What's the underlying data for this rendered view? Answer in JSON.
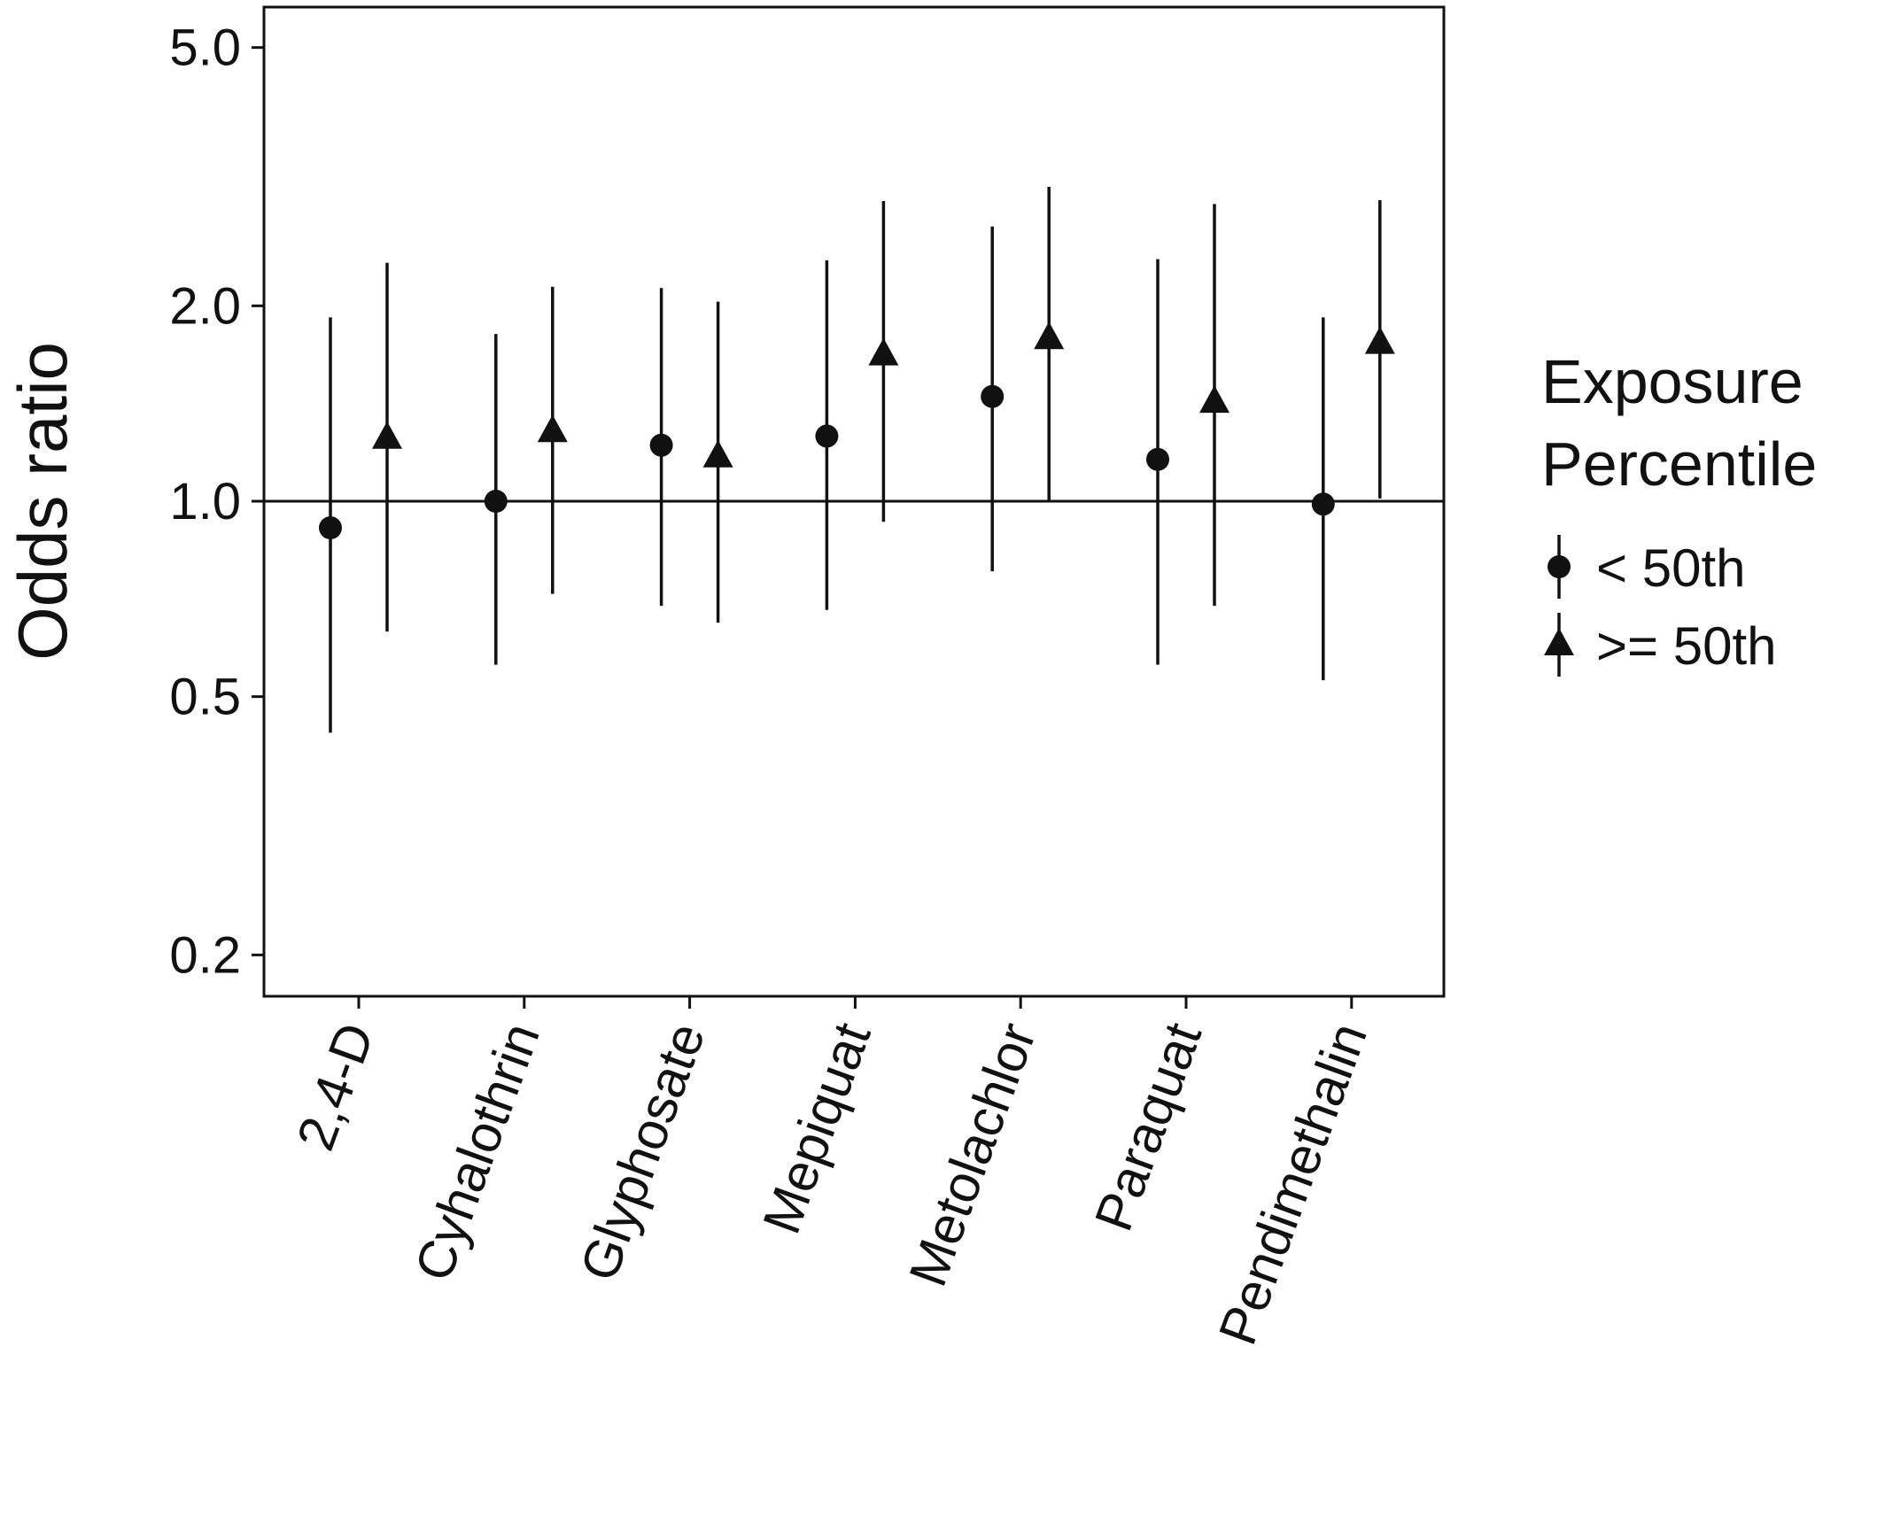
{
  "chart_data": {
    "type": "scatter",
    "subtype": "point-range (odds ratio with confidence interval)",
    "title": "",
    "xlabel": "",
    "ylabel": "Odds ratio",
    "y_scale": "log",
    "ylim": [
      0.17,
      6.0
    ],
    "y_ticks": [
      0.2,
      0.5,
      1.0,
      2.0,
      5.0
    ],
    "y_tick_labels": [
      "0.2",
      "0.5",
      "1.0",
      "2.0",
      "5.0"
    ],
    "reference_line": 1.0,
    "grid": false,
    "categories": [
      "2,4-D",
      "Cyhalothrin",
      "Glyphosate",
      "Mepiquat",
      "Metolachlor",
      "Paraquat",
      "Pendimethalin"
    ],
    "legend": {
      "title_lines": [
        "Exposure",
        "Percentile"
      ],
      "placement": "right"
    },
    "series": [
      {
        "name": "< 50th",
        "marker": "circle",
        "estimate": [
          0.91,
          1.0,
          1.22,
          1.26,
          1.45,
          1.16,
          0.99
        ],
        "lower": [
          0.44,
          0.56,
          0.69,
          0.68,
          0.78,
          0.56,
          0.53
        ],
        "upper": [
          1.92,
          1.81,
          2.13,
          2.35,
          2.65,
          2.36,
          1.92
        ]
      },
      {
        "name": ">= 50th",
        "marker": "triangle",
        "estimate": [
          1.25,
          1.28,
          1.17,
          1.68,
          1.78,
          1.42,
          1.75
        ],
        "lower": [
          0.63,
          0.72,
          0.65,
          0.93,
          1.0,
          0.69,
          1.01
        ],
        "upper": [
          2.33,
          2.14,
          2.03,
          2.9,
          3.05,
          2.87,
          2.91
        ]
      }
    ]
  }
}
